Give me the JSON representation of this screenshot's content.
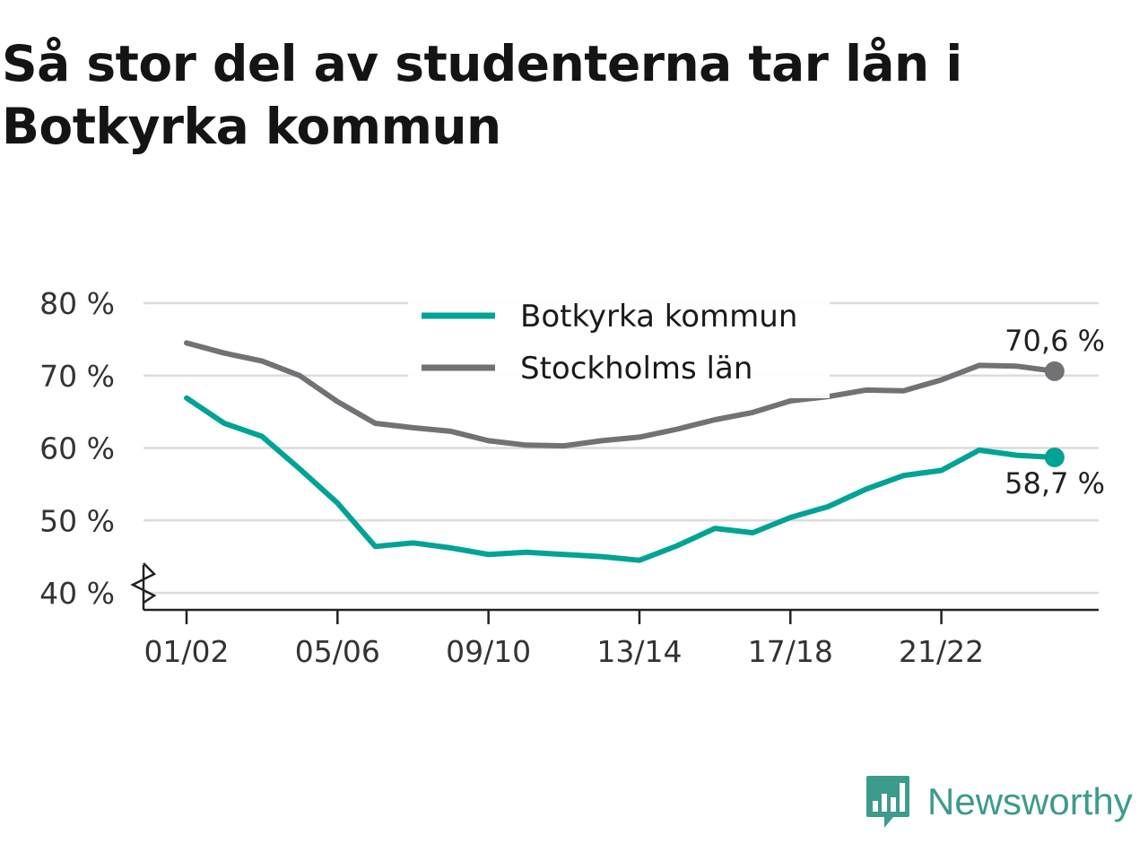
{
  "title": "Så stor del av studenterna tar lån i Botkyrka kommun",
  "brand": {
    "name": "Newsworthy",
    "icon": "newsworthy-logo-icon",
    "color": "#3d9b8c"
  },
  "chart_data": {
    "type": "line",
    "x": [
      "01/02",
      "02/03",
      "03/04",
      "04/05",
      "05/06",
      "06/07",
      "07/08",
      "08/09",
      "09/10",
      "10/11",
      "11/12",
      "12/13",
      "13/14",
      "14/15",
      "15/16",
      "16/17",
      "17/18",
      "18/19",
      "19/20",
      "20/21",
      "21/22",
      "22/23",
      "23/24",
      "24/25"
    ],
    "x_tick_labels": [
      "01/02",
      "05/06",
      "09/10",
      "13/14",
      "17/18",
      "21/22"
    ],
    "y_ticks": [
      40,
      50,
      60,
      70,
      80
    ],
    "y_tick_labels": [
      "40 %",
      "50 %",
      "60 %",
      "70 %",
      "80 %"
    ],
    "ylim": [
      40,
      80
    ],
    "y_axis_break": true,
    "grid": true,
    "legend_position": "top-center",
    "series": [
      {
        "name": "Botkyrka kommun",
        "color": "#00a394",
        "values": [
          66.9,
          63.4,
          61.6,
          57.1,
          52.4,
          46.4,
          46.9,
          46.2,
          45.3,
          45.6,
          45.3,
          45.0,
          44.5,
          46.5,
          48.9,
          48.3,
          50.4,
          51.9,
          54.3,
          56.2,
          56.9,
          59.7,
          59.0,
          58.7
        ],
        "end_label": "58,7 %"
      },
      {
        "name": "Stockholms län",
        "color": "#727175",
        "values": [
          74.5,
          73.1,
          72.0,
          70.0,
          66.4,
          63.4,
          62.8,
          62.3,
          61.0,
          60.4,
          60.3,
          61.0,
          61.5,
          62.6,
          63.9,
          64.9,
          66.5,
          67.1,
          68.0,
          67.9,
          69.4,
          71.4,
          71.3,
          70.6
        ],
        "end_label": "70,6 %"
      }
    ]
  }
}
